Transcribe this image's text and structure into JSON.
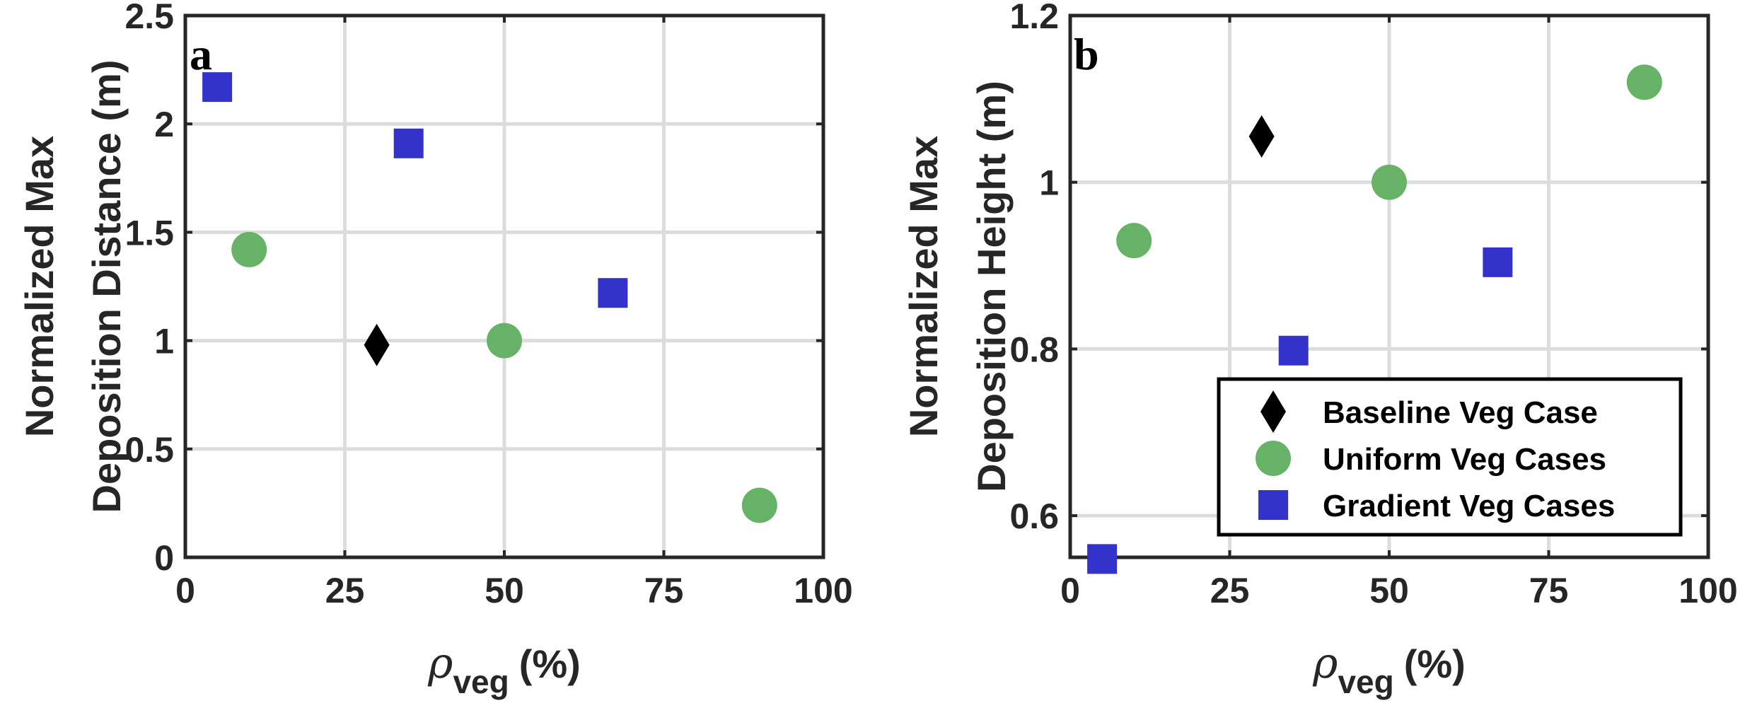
{
  "chart_data": [
    {
      "type": "scatter",
      "panel_label": "a",
      "xlabel": "(%)",
      "xlabel_symbol": "ρ",
      "xlabel_subscript": "veg",
      "ylabel": [
        "Normalized Max",
        "Deposition Distance (m)"
      ],
      "xlim": [
        0,
        100
      ],
      "ylim": [
        0,
        2.5
      ],
      "xticks": [
        "0",
        "25",
        "50",
        "75",
        "100"
      ],
      "yticks": [
        "0",
        "0.5",
        "1",
        "1.5",
        "2",
        "2.5"
      ],
      "grid": true,
      "series": [
        {
          "name": "Baseline Veg Case",
          "marker": "diamond",
          "color": "#000000",
          "points": [
            [
              30,
              0.98
            ]
          ]
        },
        {
          "name": "Uniform Veg Cases",
          "marker": "circle",
          "color": "#66b266",
          "points": [
            [
              10,
              1.42
            ],
            [
              50,
              1.0
            ],
            [
              90,
              0.24
            ]
          ]
        },
        {
          "name": "Gradient Veg Cases",
          "marker": "square",
          "color": "#3333cc",
          "points": [
            [
              5,
              2.17
            ],
            [
              35,
              1.91
            ],
            [
              67,
              1.22
            ]
          ]
        }
      ]
    },
    {
      "type": "scatter",
      "panel_label": "b",
      "xlabel": "(%)",
      "xlabel_symbol": "ρ",
      "xlabel_subscript": "veg",
      "ylabel": [
        "Normalized Max",
        "Deposition Height (m)"
      ],
      "xlim": [
        0,
        100
      ],
      "ylim": [
        0.55,
        1.2
      ],
      "xticks": [
        "0",
        "25",
        "50",
        "75",
        "100"
      ],
      "yticks": [
        "0.6",
        "0.8",
        "1",
        "1.2"
      ],
      "grid": true,
      "legend_position": "bottom-right",
      "series": [
        {
          "name": "Baseline Veg Case",
          "marker": "diamond",
          "color": "#000000",
          "points": [
            [
              30,
              1.055
            ]
          ]
        },
        {
          "name": "Uniform Veg Cases",
          "marker": "circle",
          "color": "#66b266",
          "points": [
            [
              10,
              0.93
            ],
            [
              50,
              1.0
            ],
            [
              90,
              1.12
            ]
          ]
        },
        {
          "name": "Gradient Veg Cases",
          "marker": "square",
          "color": "#3333cc",
          "points": [
            [
              5,
              0.548
            ],
            [
              35,
              0.798
            ],
            [
              67,
              0.904
            ]
          ]
        }
      ]
    }
  ]
}
